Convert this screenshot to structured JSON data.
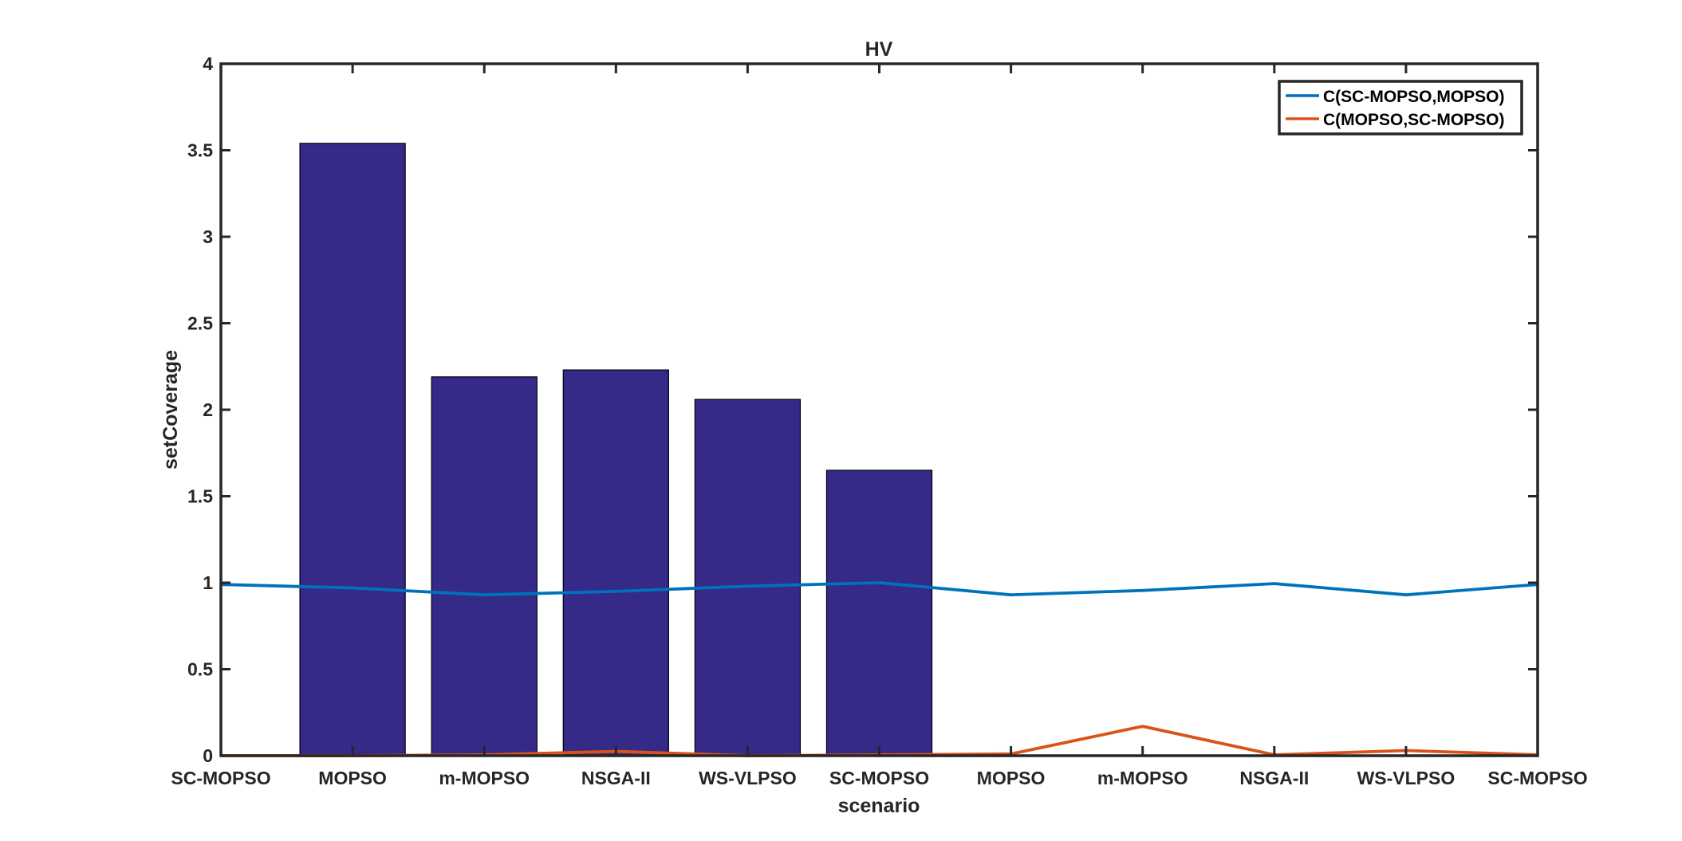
{
  "chart_data": {
    "type": "bar",
    "title": "HV",
    "xlabel": "scenario",
    "ylabel": "setCoverage",
    "categories": [
      "SC-MOPSO",
      "MOPSO",
      "m-MOPSO",
      "NSGA-II",
      "WS-VLPSO",
      "SC-MOPSO",
      "MOPSO",
      "m-MOPSO",
      "NSGA-II",
      "WS-VLPSO",
      "SC-MOPSO"
    ],
    "x": [
      1,
      2,
      3,
      4,
      5,
      6,
      7,
      8,
      9,
      10,
      11
    ],
    "xlim": [
      1,
      11
    ],
    "ylim": [
      0,
      4
    ],
    "yticks": [
      "0",
      "0.5",
      "1",
      "1.5",
      "2",
      "2.5",
      "3",
      "3.5",
      "4"
    ],
    "bars": {
      "x": [
        2,
        3,
        4,
        5,
        6
      ],
      "values": [
        3.54,
        2.19,
        2.23,
        2.06,
        1.65
      ],
      "color": "#352a87"
    },
    "series": [
      {
        "name": "C(SC-MOPSO,MOPSO)",
        "color": "#0072bd",
        "values": [
          0.99,
          0.97,
          0.93,
          0.95,
          0.98,
          1.0,
          0.93,
          0.955,
          0.995,
          0.93,
          0.99
        ]
      },
      {
        "name": "C(MOPSO,SC-MOPSO)",
        "color": "#d95319",
        "values": [
          0.0,
          0.0,
          0.005,
          0.025,
          0.0,
          0.005,
          0.01,
          0.17,
          0.005,
          0.03,
          0.005
        ]
      }
    ],
    "legend_position": "top-right",
    "grid": false
  }
}
